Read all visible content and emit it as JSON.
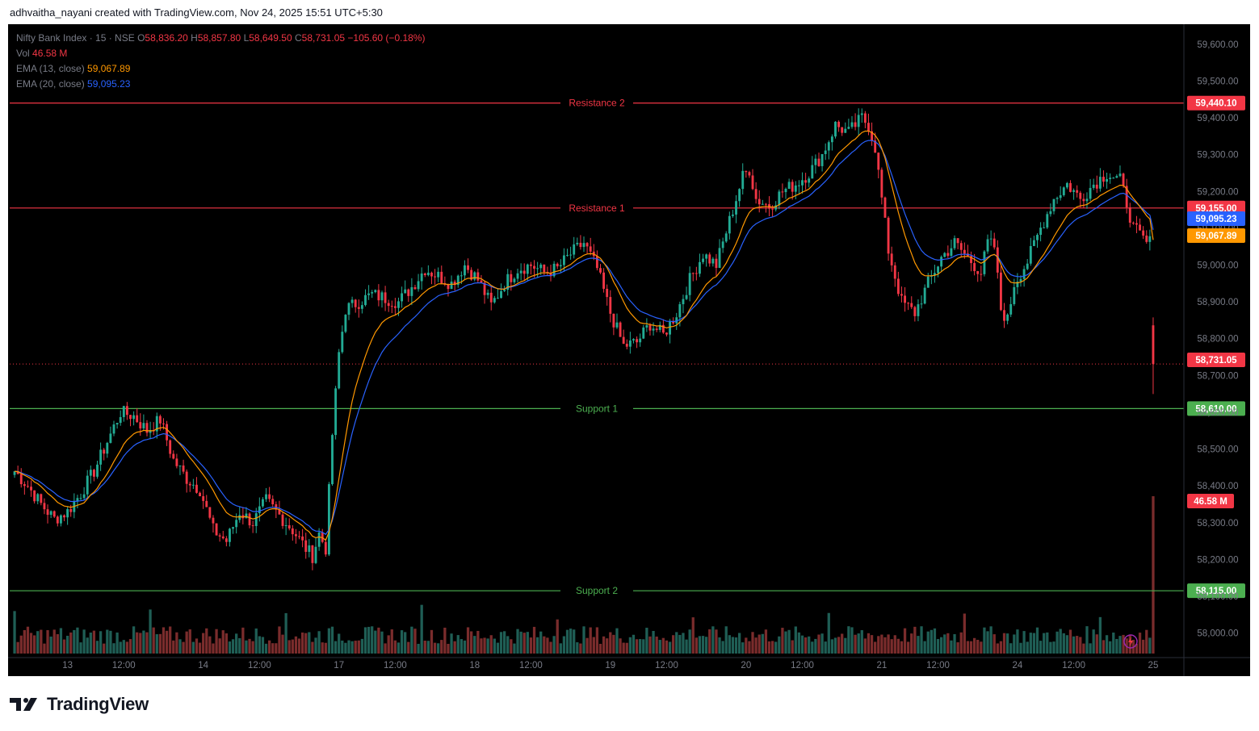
{
  "header": {
    "text": "adhvaitha_nayani created with TradingView.com, Nov 24, 2025 15:51 UTC+5:30"
  },
  "footer": {
    "brand": "TradingView"
  },
  "legend": {
    "symbol": "Nifty Bank Index · 15 · NSE",
    "open_label": "O",
    "open": "58,836.20",
    "high_label": "H",
    "high": "58,857.80",
    "low_label": "L",
    "low": "58,649.50",
    "close_label": "C",
    "close": "58,731.05",
    "change": "−105.60 (−0.18%)",
    "vol_label": "Vol",
    "vol": "46.58 M",
    "ema13_label": "EMA (13, close)",
    "ema13": "59,067.89",
    "ema20_label": "EMA (20, close)",
    "ema20": "59,095.23"
  },
  "colors": {
    "up": "#22ab94",
    "down": "#f23645",
    "vol_up": "#1f5e55",
    "vol_down": "#7a2c2c",
    "ema13": "#ff9800",
    "ema20": "#2962ff",
    "resistance": "#f23645",
    "support": "#4caf50",
    "axis_text": "#787b86",
    "background": "#000000"
  },
  "chart_data": {
    "type": "candlestick",
    "ylim": [
      57940,
      59650
    ],
    "y_ticks": [
      "58,000.00",
      "58,100.00",
      "58,200.00",
      "58,300.00",
      "58,400.00",
      "58,500.00",
      "58,600.00",
      "58,700.00",
      "58,800.00",
      "58,900.00",
      "59,000.00",
      "59,100.00",
      "59,200.00",
      "59,300.00",
      "59,400.00",
      "59,500.00",
      "59,600.00"
    ],
    "x_ticks": [
      {
        "label": "13",
        "bar": 16
      },
      {
        "label": "12:00",
        "bar": 33
      },
      {
        "label": "14",
        "bar": 57
      },
      {
        "label": "12:00",
        "bar": 74
      },
      {
        "label": "17",
        "bar": 98
      },
      {
        "label": "12:00",
        "bar": 115
      },
      {
        "label": "18",
        "bar": 139
      },
      {
        "label": "12:00",
        "bar": 156
      },
      {
        "label": "19",
        "bar": 180
      },
      {
        "label": "12:00",
        "bar": 197
      },
      {
        "label": "20",
        "bar": 221
      },
      {
        "label": "12:00",
        "bar": 238
      },
      {
        "label": "21",
        "bar": 262
      },
      {
        "label": "12:00",
        "bar": 279
      },
      {
        "label": "24",
        "bar": 303
      },
      {
        "label": "12:00",
        "bar": 320
      },
      {
        "label": "25",
        "bar": 344
      }
    ],
    "levels": [
      {
        "name": "Resistance 2",
        "value": 59440.1,
        "label": "59,440.10",
        "kind": "resistance"
      },
      {
        "name": "Resistance 1",
        "value": 59155.0,
        "label": "59,155.00",
        "kind": "resistance"
      },
      {
        "name": "Support 1",
        "value": 58610.0,
        "label": "58,610.00",
        "kind": "support"
      },
      {
        "name": "Support 2",
        "value": 58115.0,
        "label": "58,115.00",
        "kind": "support"
      }
    ],
    "price_tags": [
      {
        "value": 59095.23,
        "label": "59,095.23",
        "color": "#2962ff"
      },
      {
        "value": 59067.89,
        "label": "59,067.89",
        "color": "#ff9800"
      },
      {
        "value": 58731.05,
        "label": "58,731.05",
        "color": "#f23645"
      }
    ],
    "vol_tag": {
      "label": "46.58 M",
      "color": "#f23645"
    },
    "keypoints": [
      [
        0,
        58440
      ],
      [
        4,
        58400
      ],
      [
        8,
        58350
      ],
      [
        12,
        58310
      ],
      [
        16,
        58330
      ],
      [
        20,
        58380
      ],
      [
        24,
        58440
      ],
      [
        28,
        58520
      ],
      [
        32,
        58600
      ],
      [
        36,
        58590
      ],
      [
        40,
        58550
      ],
      [
        44,
        58580
      ],
      [
        48,
        58470
      ],
      [
        52,
        58420
      ],
      [
        56,
        58390
      ],
      [
        60,
        58280
      ],
      [
        64,
        58250
      ],
      [
        68,
        58330
      ],
      [
        72,
        58300
      ],
      [
        76,
        58360
      ],
      [
        80,
        58320
      ],
      [
        84,
        58280
      ],
      [
        88,
        58230
      ],
      [
        90,
        58210
      ],
      [
        92,
        58270
      ],
      [
        94,
        58230
      ],
      [
        96,
        58540
      ],
      [
        98,
        58760
      ],
      [
        100,
        58880
      ],
      [
        104,
        58900
      ],
      [
        108,
        58920
      ],
      [
        112,
        58910
      ],
      [
        116,
        58900
      ],
      [
        120,
        58940
      ],
      [
        124,
        58990
      ],
      [
        128,
        58970
      ],
      [
        132,
        58950
      ],
      [
        136,
        59000
      ],
      [
        140,
        58960
      ],
      [
        144,
        58890
      ],
      [
        148,
        58950
      ],
      [
        152,
        58990
      ],
      [
        156,
        59000
      ],
      [
        160,
        58980
      ],
      [
        164,
        58990
      ],
      [
        168,
        59030
      ],
      [
        172,
        59060
      ],
      [
        176,
        58990
      ],
      [
        180,
        58870
      ],
      [
        184,
        58780
      ],
      [
        188,
        58790
      ],
      [
        192,
        58840
      ],
      [
        196,
        58810
      ],
      [
        200,
        58870
      ],
      [
        204,
        58960
      ],
      [
        208,
        59030
      ],
      [
        212,
        59000
      ],
      [
        216,
        59120
      ],
      [
        220,
        59240
      ],
      [
        222,
        59260
      ],
      [
        224,
        59180
      ],
      [
        228,
        59160
      ],
      [
        232,
        59200
      ],
      [
        236,
        59220
      ],
      [
        240,
        59250
      ],
      [
        244,
        59300
      ],
      [
        248,
        59380
      ],
      [
        252,
        59360
      ],
      [
        256,
        59400
      ],
      [
        258,
        59380
      ],
      [
        260,
        59320
      ],
      [
        262,
        59180
      ],
      [
        264,
        59040
      ],
      [
        268,
        58900
      ],
      [
        272,
        58870
      ],
      [
        276,
        58950
      ],
      [
        280,
        59020
      ],
      [
        284,
        59060
      ],
      [
        288,
        59020
      ],
      [
        292,
        58980
      ],
      [
        294,
        59060
      ],
      [
        296,
        59050
      ],
      [
        298,
        58880
      ],
      [
        300,
        58850
      ],
      [
        302,
        58950
      ],
      [
        306,
        59010
      ],
      [
        310,
        59100
      ],
      [
        314,
        59180
      ],
      [
        318,
        59220
      ],
      [
        322,
        59180
      ],
      [
        326,
        59220
      ],
      [
        330,
        59250
      ],
      [
        334,
        59230
      ],
      [
        336,
        59170
      ],
      [
        338,
        59100
      ],
      [
        340,
        59080
      ],
      [
        342,
        59060
      ]
    ],
    "last_bars": [
      [
        58836.2,
        58857.8,
        58649.5,
        58731.05
      ]
    ],
    "total_bars": 344,
    "ema13_last": 59067.89,
    "ema20_last": 59095.23
  }
}
